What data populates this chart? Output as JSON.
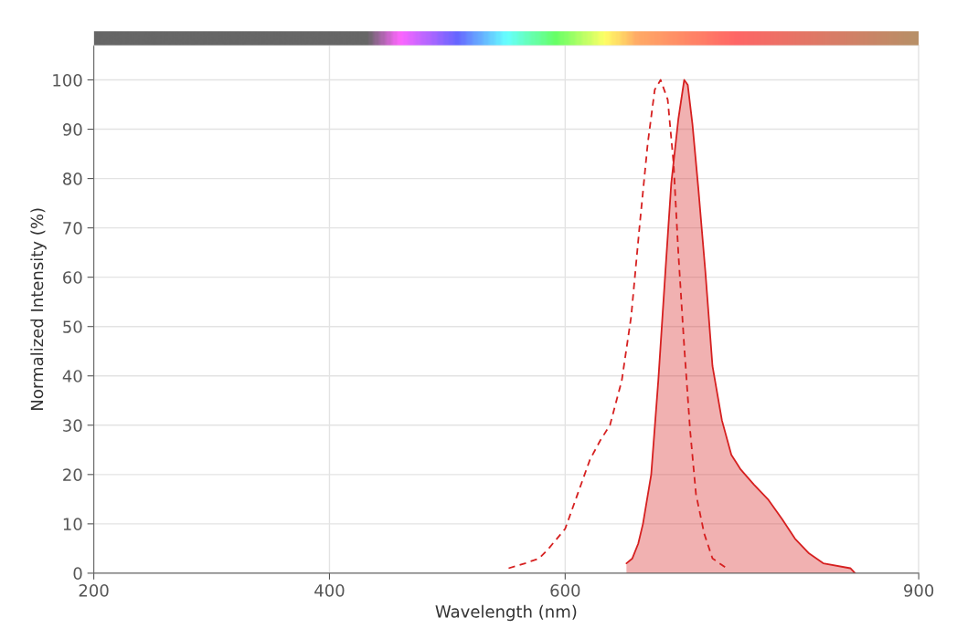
{
  "chart_data": {
    "type": "line",
    "xlabel": "Wavelength (nm)",
    "ylabel": "Normalized Intensity (%)",
    "xlim": [
      200,
      900
    ],
    "xticks": [
      200,
      400,
      600,
      900
    ],
    "ylim": [
      0,
      107
    ],
    "yticks": [
      0,
      10,
      20,
      30,
      40,
      50,
      60,
      70,
      80,
      90,
      100
    ],
    "grid": true,
    "series": [
      {
        "line_style": "dashed",
        "color": "#d62020",
        "x": [
          552,
          566,
          578,
          586,
          593,
          600,
          609,
          621,
          630,
          638,
          648,
          656,
          663,
          670,
          676,
          681,
          687,
          692,
          696,
          701,
          706,
          711,
          718,
          725,
          737
        ],
        "values": [
          1,
          2,
          3,
          5,
          7,
          9,
          15,
          23,
          27,
          30,
          39,
          52,
          70,
          87,
          98,
          100,
          96,
          83,
          65,
          46,
          29,
          16,
          8,
          3,
          1
        ]
      },
      {
        "type": "area",
        "line_style": "solid",
        "color": "#d62020",
        "x": [
          652,
          657,
          662,
          666,
          673,
          679,
          685,
          690,
          696,
          701,
          704,
          708,
          713,
          719,
          725,
          733,
          741,
          749,
          760,
          772,
          784,
          795,
          807,
          819,
          842,
          846
        ],
        "values": [
          2,
          3,
          6,
          10,
          20,
          39,
          61,
          79,
          92,
          100,
          99,
          91,
          78,
          61,
          42,
          31,
          24,
          21,
          18,
          15,
          11,
          7,
          4,
          2,
          1,
          0
        ]
      }
    ]
  }
}
